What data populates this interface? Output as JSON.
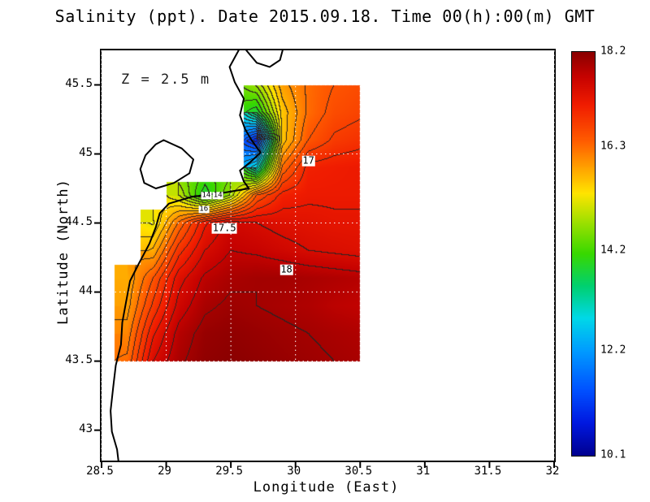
{
  "chart": {
    "title": "Salinity (ppt). Date 2015.09.18. Time 00(h):00(m) GMT",
    "xlabel": "Longitude (East)",
    "ylabel": "Latitude (North)",
    "depth_label": "Z = 2.5 m"
  },
  "chart_data": {
    "type": "heatmap",
    "variable": "Salinity",
    "units": "ppt",
    "date": "2015.09.18",
    "time": "00(h):00(m) GMT",
    "depth_m": 2.5,
    "axes": {
      "lon_min": 28.5,
      "lon_max": 32.0,
      "lat_min": 42.78,
      "lat_max": 45.75,
      "xticks": [
        28.5,
        29,
        29.5,
        30,
        30.5,
        31,
        31.5,
        32
      ],
      "yticks": [
        43,
        43.5,
        44,
        44.5,
        45,
        45.5
      ]
    },
    "colorbar": {
      "min": 10.1,
      "max": 18.2,
      "ticks": [
        18.2,
        16.3,
        14.2,
        12.2,
        10.1
      ],
      "stops": [
        [
          0.0,
          "#000090"
        ],
        [
          0.08,
          "#0018e0"
        ],
        [
          0.16,
          "#0050ff"
        ],
        [
          0.26,
          "#009cff"
        ],
        [
          0.34,
          "#00d8e8"
        ],
        [
          0.42,
          "#00d070"
        ],
        [
          0.5,
          "#38d800"
        ],
        [
          0.58,
          "#a0e000"
        ],
        [
          0.65,
          "#ffe400"
        ],
        [
          0.7,
          "#ffb000"
        ],
        [
          0.78,
          "#ff5c00"
        ],
        [
          0.87,
          "#f01c00"
        ],
        [
          0.94,
          "#c60200"
        ],
        [
          1.0,
          "#8b0000"
        ]
      ]
    },
    "contours": {
      "interval": 0.25,
      "base": 10,
      "line_color_rgb": [
        45,
        35,
        35
      ],
      "labels": [
        {
          "text": "17",
          "lon": 30.1,
          "lat": 44.95,
          "size": 12
        },
        {
          "text": "17.5",
          "lon": 29.45,
          "lat": 44.46,
          "size": 12
        },
        {
          "text": "18",
          "lon": 29.93,
          "lat": 44.16,
          "size": 12
        },
        {
          "text": "14",
          "lon": 29.31,
          "lat": 44.7,
          "size": 9
        },
        {
          "text": "14",
          "lon": 29.4,
          "lat": 44.7,
          "size": 9
        },
        {
          "text": "16",
          "lon": 29.29,
          "lat": 44.6,
          "size": 9
        }
      ]
    },
    "grid": {
      "lons": [
        28.5,
        28.7,
        28.9,
        29.1,
        29.3,
        29.5,
        29.7,
        29.9,
        30.1,
        30.3,
        30.5
      ],
      "lats": [
        45.5,
        45.3,
        45.1,
        44.9,
        44.7,
        44.5,
        44.3,
        44.1,
        43.9,
        43.7,
        43.5
      ],
      "values": [
        [
          null,
          null,
          null,
          null,
          null,
          null,
          14.8,
          15.9,
          16.3,
          16.5,
          16.6
        ],
        [
          null,
          null,
          null,
          null,
          null,
          null,
          13.8,
          15.6,
          16.3,
          16.6,
          16.7
        ],
        [
          null,
          null,
          null,
          null,
          null,
          null,
          10.8,
          15.6,
          16.5,
          16.8,
          16.9
        ],
        [
          null,
          null,
          null,
          null,
          null,
          null,
          13.0,
          16.3,
          17.1,
          17.15,
          17.2
        ],
        [
          null,
          null,
          null,
          15.0,
          13.8,
          14.8,
          16.5,
          17.1,
          17.2,
          17.2,
          17.2
        ],
        [
          null,
          null,
          15.2,
          16.3,
          17.2,
          17.6,
          17.5,
          17.4,
          17.35,
          17.3,
          17.3
        ],
        [
          null,
          null,
          15.8,
          16.9,
          17.5,
          17.75,
          17.7,
          17.6,
          17.5,
          17.45,
          17.4
        ],
        [
          null,
          15.8,
          16.5,
          17.4,
          17.8,
          17.95,
          18.0,
          18.0,
          17.95,
          17.9,
          17.85
        ],
        [
          null,
          15.9,
          16.8,
          17.6,
          17.95,
          18.05,
          18.0,
          17.95,
          17.9,
          17.8,
          17.75
        ],
        [
          null,
          16.1,
          17.2,
          17.85,
          18.1,
          18.15,
          18.1,
          18.05,
          18.0,
          17.95,
          17.9
        ],
        [
          null,
          16.3,
          17.5,
          17.95,
          18.15,
          18.2,
          18.15,
          18.1,
          18.05,
          18.0,
          17.95
        ]
      ]
    },
    "coastlines": [
      [
        [
          29.56,
          45.75
        ],
        [
          29.49,
          45.63
        ],
        [
          29.53,
          45.52
        ],
        [
          29.6,
          45.4
        ],
        [
          29.57,
          45.28
        ],
        [
          29.61,
          45.18
        ],
        [
          29.66,
          45.1
        ],
        [
          29.73,
          45.01
        ],
        [
          29.65,
          44.94
        ],
        [
          29.57,
          44.88
        ],
        [
          29.6,
          44.8
        ],
        [
          29.64,
          44.75
        ],
        [
          29.45,
          44.72
        ],
        [
          29.2,
          44.69
        ],
        [
          29.02,
          44.64
        ],
        [
          28.95,
          44.57
        ],
        [
          28.92,
          44.47
        ],
        [
          28.87,
          44.35
        ],
        [
          28.79,
          44.21
        ],
        [
          28.72,
          44.08
        ],
        [
          28.69,
          43.93
        ],
        [
          28.66,
          43.78
        ],
        [
          28.65,
          43.62
        ],
        [
          28.61,
          43.47
        ],
        [
          28.59,
          43.31
        ],
        [
          28.57,
          43.14
        ],
        [
          28.58,
          42.99
        ],
        [
          28.62,
          42.86
        ],
        [
          28.63,
          42.78
        ]
      ],
      [
        [
          28.98,
          45.1
        ],
        [
          29.12,
          45.04
        ],
        [
          29.21,
          44.96
        ],
        [
          29.18,
          44.86
        ],
        [
          29.06,
          44.79
        ],
        [
          28.92,
          44.75
        ],
        [
          28.83,
          44.79
        ],
        [
          28.8,
          44.89
        ],
        [
          28.84,
          44.99
        ],
        [
          28.92,
          45.07
        ],
        [
          28.98,
          45.1
        ]
      ],
      [
        [
          29.62,
          45.75
        ],
        [
          29.7,
          45.66
        ],
        [
          29.8,
          45.63
        ],
        [
          29.88,
          45.68
        ],
        [
          29.9,
          45.75
        ]
      ]
    ]
  }
}
